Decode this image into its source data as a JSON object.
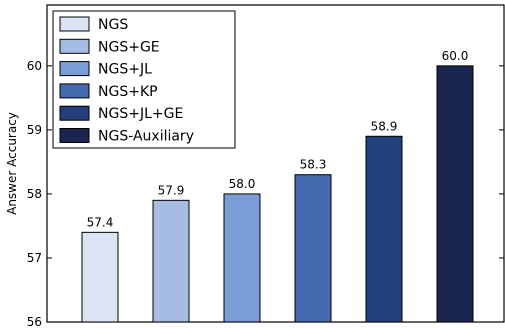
{
  "chart_data": {
    "type": "bar",
    "ylabel": "Answer Accuracy",
    "ylim": [
      56,
      60.95
    ],
    "yticks": [
      56,
      57,
      58,
      59,
      60
    ],
    "grid": false,
    "legend_position": "top-left",
    "categories": [
      "NGS",
      "NGS+GE",
      "NGS+JL",
      "NGS+KP",
      "NGS+JL+GE",
      "NGS-Auxiliary"
    ],
    "values": [
      57.4,
      57.9,
      58.0,
      58.3,
      58.9,
      60.0
    ],
    "value_labels": [
      "57.4",
      "57.9",
      "58.0",
      "58.3",
      "58.9",
      "60.0"
    ],
    "colors": [
      "#dbe3f4",
      "#a7bce2",
      "#7b9dd6",
      "#4569ad",
      "#233f7c",
      "#1a2550"
    ]
  }
}
